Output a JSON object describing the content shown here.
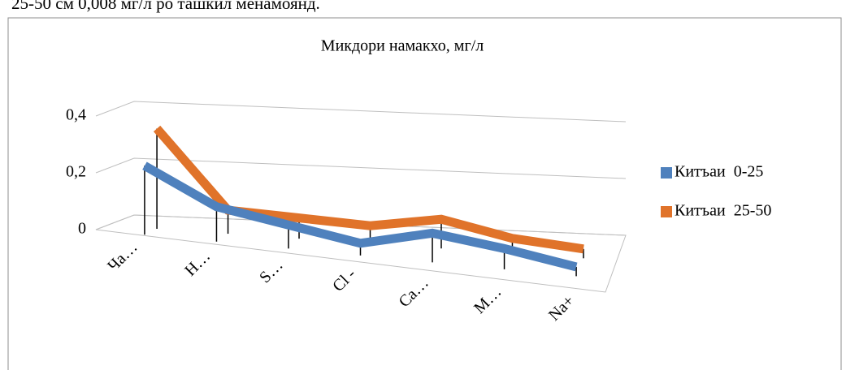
{
  "caption": "25-50 см 0,008 мг/л ро ташкил менамоянд.",
  "chart_data": {
    "type": "line3d",
    "title": "Микдори намакхо, мг/л",
    "categories": [
      "Ча…",
      "Н…",
      "S…",
      "Cl -",
      "Са…",
      "М…",
      "Na+"
    ],
    "series": [
      {
        "name": "Китъаи  0-25",
        "color": "#4f81bd",
        "values": [
          0.22,
          0.1,
          0.06,
          0.02,
          0.08,
          0.05,
          0.01
        ]
      },
      {
        "name": "Китъаи  25-50",
        "color": "#e0732a",
        "values": [
          0.33,
          0.06,
          0.05,
          0.04,
          0.08,
          0.03,
          0.01
        ]
      }
    ],
    "ylim": [
      0,
      0.4
    ],
    "yticks": [
      {
        "value": 0,
        "label": "0"
      },
      {
        "value": 0.2,
        "label": "0,2"
      },
      {
        "value": 0.4,
        "label": "0,4"
      }
    ],
    "grid": true,
    "legend": "right"
  }
}
